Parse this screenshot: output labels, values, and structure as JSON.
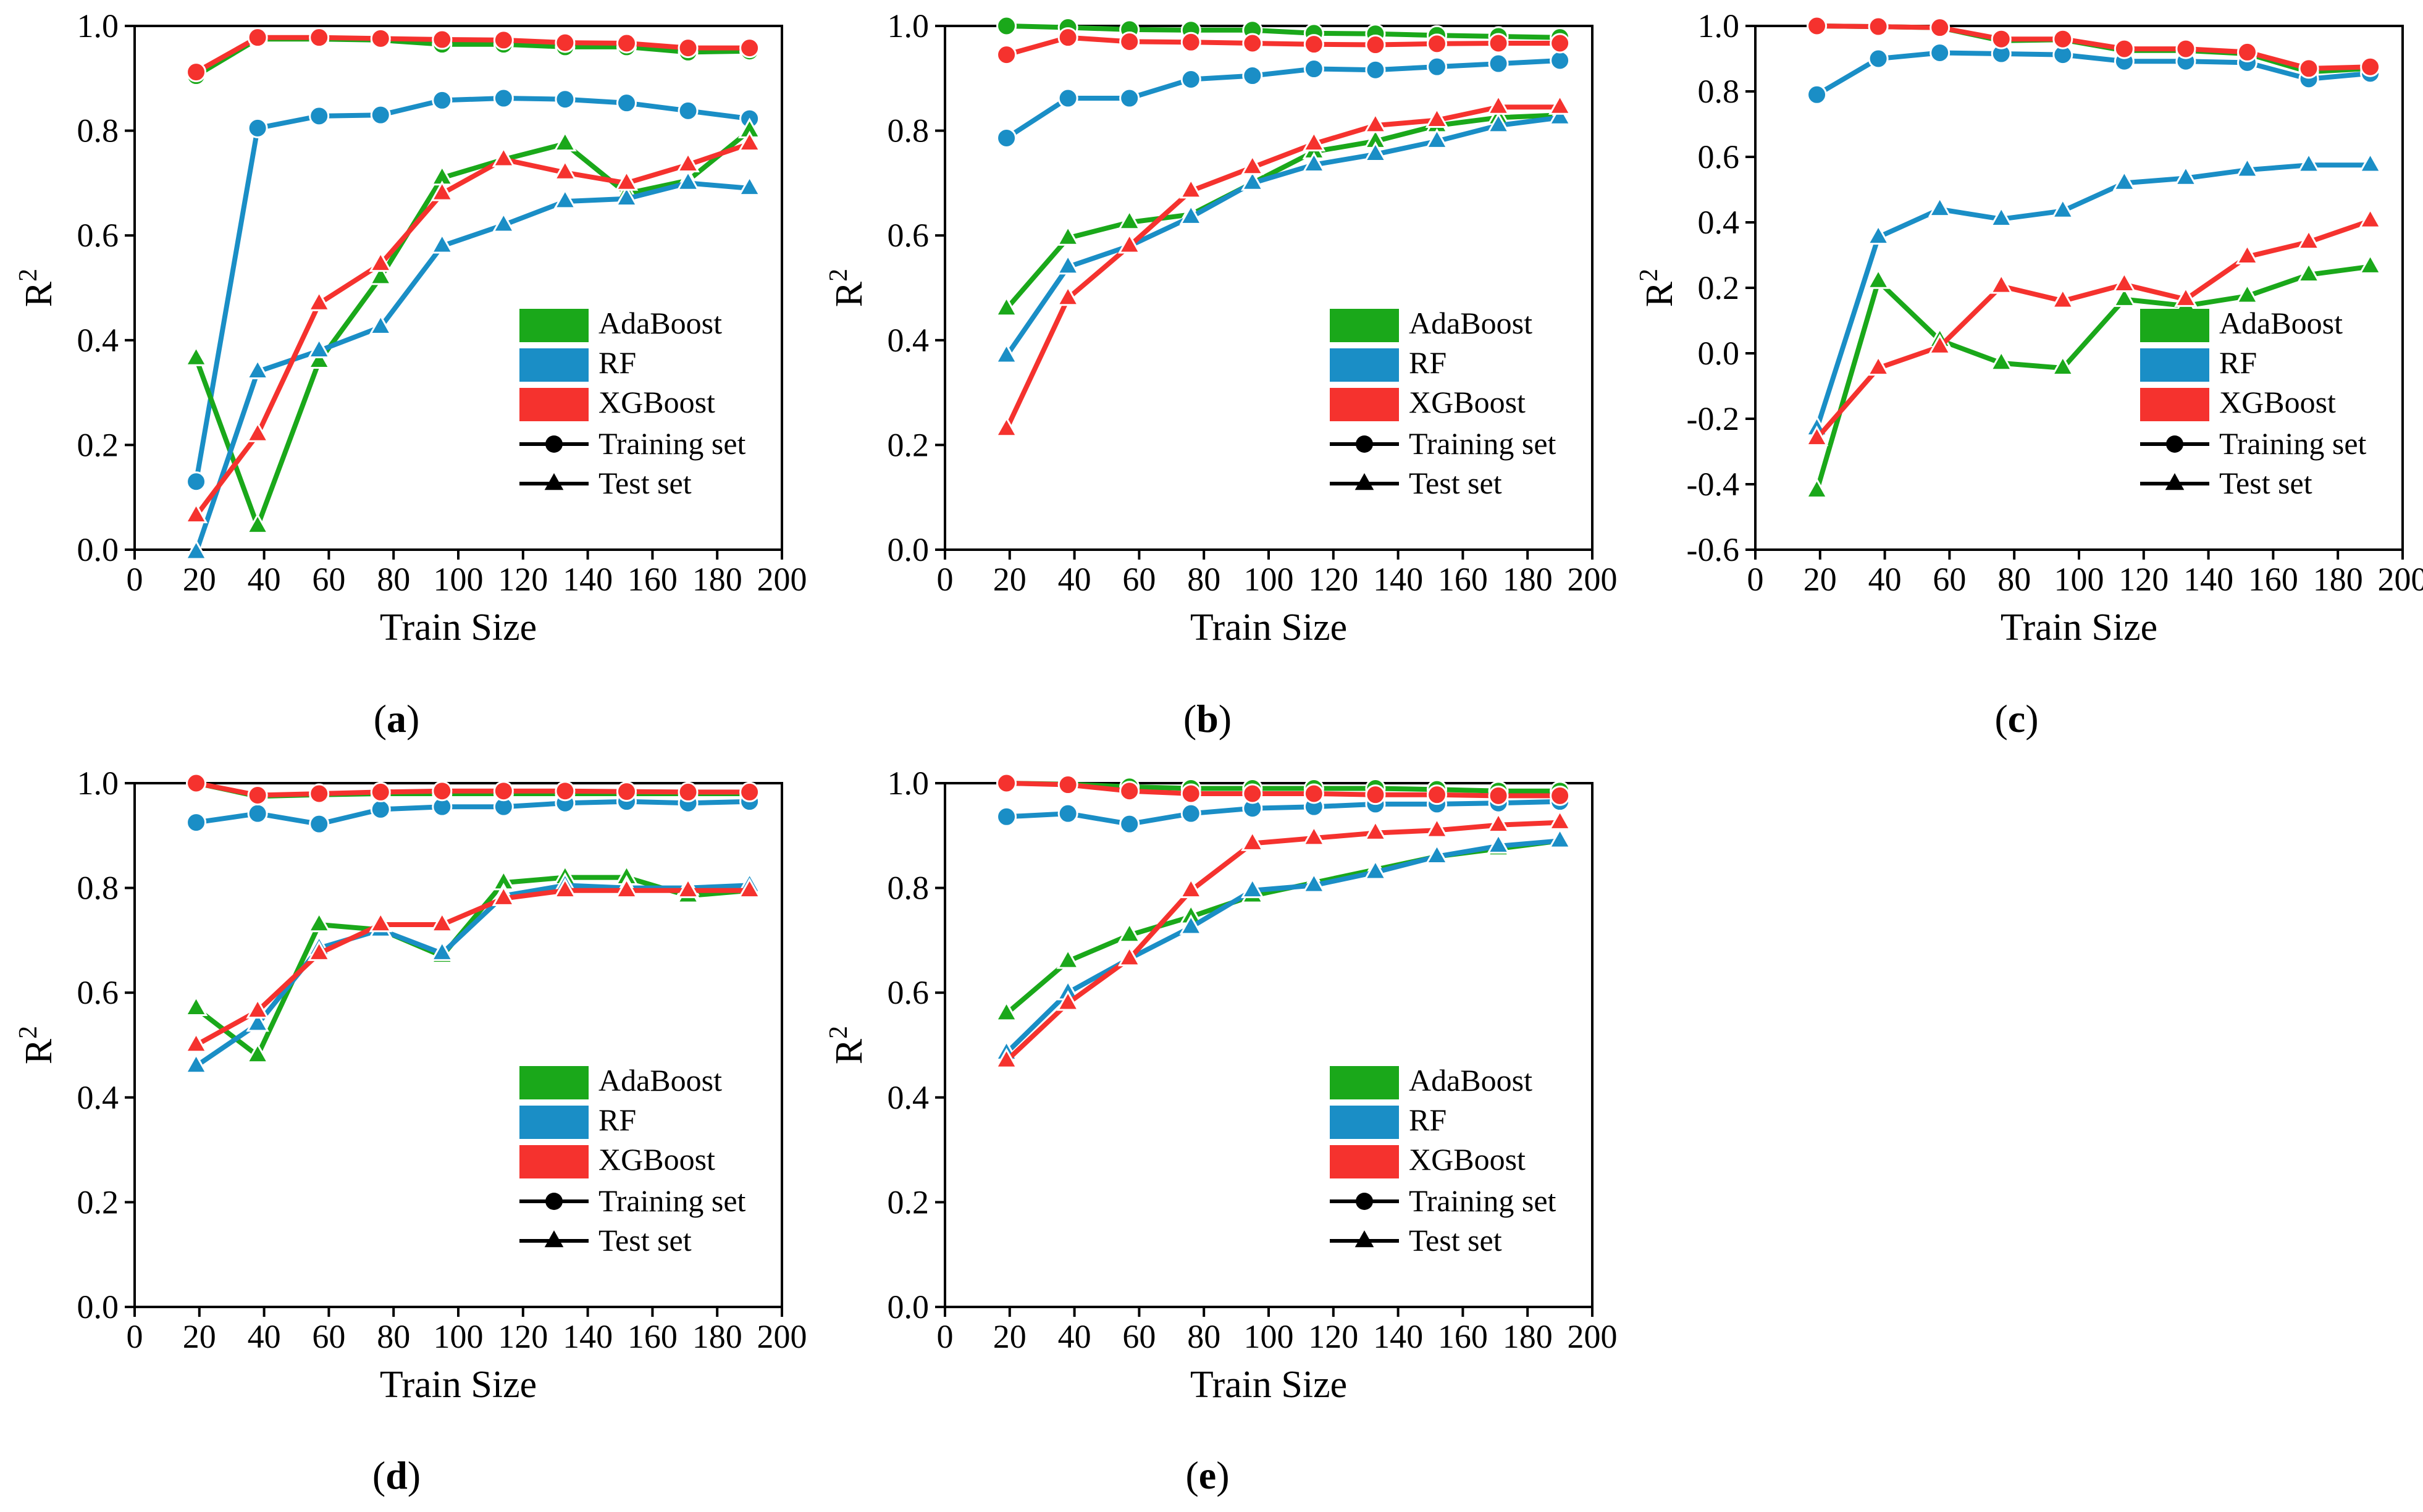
{
  "colors": {
    "AdaBoost": "#1aa81a",
    "RF": "#1a8ec6",
    "XGBoost": "#f5322e"
  },
  "chart_data": [
    {
      "panel": "(a)",
      "type": "line",
      "xlabel": "Train Size",
      "ylabel": "R2",
      "xlim": [
        0,
        200
      ],
      "ylim": [
        0.0,
        1.0
      ],
      "xticks": [
        0,
        20,
        40,
        60,
        80,
        100,
        120,
        140,
        160,
        180,
        200
      ],
      "yticks": [
        0.0,
        0.2,
        0.4,
        0.6,
        0.8,
        1.0
      ],
      "x": [
        19,
        38,
        57,
        76,
        95,
        114,
        133,
        152,
        171,
        190
      ],
      "legend": {
        "position": "lower right",
        "entries": [
          "AdaBoost",
          "RF",
          "XGBoost",
          "Training set",
          "Test set"
        ]
      },
      "series": [
        {
          "name": "AdaBoost",
          "set": "Training set",
          "values": [
            0.905,
            0.975,
            0.975,
            0.973,
            0.965,
            0.965,
            0.96,
            0.96,
            0.95,
            0.952
          ]
        },
        {
          "name": "RF",
          "set": "Training set",
          "values": [
            0.13,
            0.805,
            0.828,
            0.83,
            0.858,
            0.862,
            0.86,
            0.853,
            0.838,
            0.823
          ]
        },
        {
          "name": "XGBoost",
          "set": "Training set",
          "values": [
            0.912,
            0.978,
            0.978,
            0.976,
            0.974,
            0.973,
            0.968,
            0.967,
            0.958,
            0.958
          ]
        },
        {
          "name": "AdaBoost",
          "set": "Test set",
          "values": [
            0.365,
            0.045,
            0.36,
            0.52,
            0.71,
            0.745,
            0.775,
            0.68,
            0.705,
            0.8
          ]
        },
        {
          "name": "RF",
          "set": "Test set",
          "values": [
            -0.005,
            0.34,
            0.38,
            0.425,
            0.58,
            0.62,
            0.665,
            0.67,
            0.7,
            0.69
          ]
        },
        {
          "name": "XGBoost",
          "set": "Test set",
          "values": [
            0.065,
            0.22,
            0.47,
            0.545,
            0.68,
            0.745,
            0.72,
            0.7,
            0.735,
            0.775
          ]
        }
      ]
    },
    {
      "panel": "(b)",
      "type": "line",
      "xlabel": "Train Size",
      "ylabel": "R2",
      "xlim": [
        0,
        200
      ],
      "ylim": [
        0.0,
        1.0
      ],
      "xticks": [
        0,
        20,
        40,
        60,
        80,
        100,
        120,
        140,
        160,
        180,
        200
      ],
      "yticks": [
        0.0,
        0.2,
        0.4,
        0.6,
        0.8,
        1.0
      ],
      "x": [
        19,
        38,
        57,
        76,
        95,
        114,
        133,
        152,
        171,
        190
      ],
      "legend": {
        "position": "lower right",
        "entries": [
          "AdaBoost",
          "RF",
          "XGBoost",
          "Training set",
          "Test set"
        ]
      },
      "series": [
        {
          "name": "AdaBoost",
          "set": "Training set",
          "values": [
            1.0,
            0.997,
            0.993,
            0.992,
            0.992,
            0.986,
            0.985,
            0.982,
            0.98,
            0.978
          ]
        },
        {
          "name": "RF",
          "set": "Training set",
          "values": [
            0.786,
            0.862,
            0.862,
            0.898,
            0.905,
            0.918,
            0.916,
            0.922,
            0.928,
            0.934
          ]
        },
        {
          "name": "XGBoost",
          "set": "Training set",
          "values": [
            0.945,
            0.978,
            0.97,
            0.969,
            0.967,
            0.965,
            0.964,
            0.966,
            0.967,
            0.967
          ]
        },
        {
          "name": "AdaBoost",
          "set": "Test set",
          "values": [
            0.46,
            0.595,
            0.625,
            0.64,
            0.7,
            0.76,
            0.78,
            0.81,
            0.825,
            0.83
          ]
        },
        {
          "name": "RF",
          "set": "Test set",
          "values": [
            0.37,
            0.54,
            0.58,
            0.635,
            0.7,
            0.735,
            0.755,
            0.78,
            0.81,
            0.825
          ]
        },
        {
          "name": "XGBoost",
          "set": "Test set",
          "values": [
            0.23,
            0.48,
            0.58,
            0.685,
            0.73,
            0.775,
            0.81,
            0.82,
            0.845,
            0.845
          ]
        }
      ]
    },
    {
      "panel": "(c)",
      "type": "line",
      "xlabel": "Train Size",
      "ylabel": "R2",
      "xlim": [
        0,
        200
      ],
      "ylim": [
        -0.6,
        1.0
      ],
      "xticks": [
        0,
        20,
        40,
        60,
        80,
        100,
        120,
        140,
        160,
        180,
        200
      ],
      "yticks": [
        -0.6,
        -0.4,
        -0.2,
        0.0,
        0.2,
        0.4,
        0.6,
        0.8,
        1.0
      ],
      "x": [
        19,
        38,
        57,
        76,
        95,
        114,
        133,
        152,
        171,
        190
      ],
      "legend": {
        "position": "lower right",
        "entries": [
          "AdaBoost",
          "RF",
          "XGBoost",
          "Training set",
          "Test set"
        ]
      },
      "series": [
        {
          "name": "AdaBoost",
          "set": "Training set",
          "values": [
            1.0,
            0.998,
            0.995,
            0.955,
            0.958,
            0.925,
            0.925,
            0.915,
            0.86,
            0.87
          ]
        },
        {
          "name": "RF",
          "set": "Training set",
          "values": [
            0.79,
            0.9,
            0.918,
            0.915,
            0.912,
            0.892,
            0.892,
            0.888,
            0.838,
            0.855
          ]
        },
        {
          "name": "XGBoost",
          "set": "Training set",
          "values": [
            1.0,
            0.998,
            0.995,
            0.96,
            0.96,
            0.93,
            0.93,
            0.92,
            0.87,
            0.875
          ]
        },
        {
          "name": "AdaBoost",
          "set": "Test set",
          "values": [
            -0.42,
            0.22,
            0.04,
            -0.03,
            -0.045,
            0.165,
            0.145,
            0.175,
            0.24,
            0.265
          ]
        },
        {
          "name": "RF",
          "set": "Test set",
          "values": [
            -0.23,
            0.355,
            0.44,
            0.41,
            0.435,
            0.52,
            0.535,
            0.56,
            0.575,
            0.575
          ]
        },
        {
          "name": "XGBoost",
          "set": "Test set",
          "values": [
            -0.26,
            -0.045,
            0.02,
            0.205,
            0.16,
            0.21,
            0.165,
            0.295,
            0.34,
            0.405
          ]
        }
      ]
    },
    {
      "panel": "(d)",
      "type": "line",
      "xlabel": "Train Size",
      "ylabel": "R2",
      "xlim": [
        0,
        200
      ],
      "ylim": [
        0.0,
        1.0
      ],
      "xticks": [
        0,
        20,
        40,
        60,
        80,
        100,
        120,
        140,
        160,
        180,
        200
      ],
      "yticks": [
        0.0,
        0.2,
        0.4,
        0.6,
        0.8,
        1.0
      ],
      "x": [
        19,
        38,
        57,
        76,
        95,
        114,
        133,
        152,
        171,
        190
      ],
      "legend": {
        "position": "lower right",
        "entries": [
          "AdaBoost",
          "RF",
          "XGBoost",
          "Training set",
          "Test set"
        ]
      },
      "series": [
        {
          "name": "AdaBoost",
          "set": "Training set",
          "values": [
            1.0,
            0.975,
            0.978,
            0.98,
            0.98,
            0.98,
            0.98,
            0.98,
            0.98,
            0.98
          ]
        },
        {
          "name": "RF",
          "set": "Training set",
          "values": [
            0.925,
            0.942,
            0.922,
            0.95,
            0.955,
            0.955,
            0.962,
            0.965,
            0.962,
            0.965
          ]
        },
        {
          "name": "XGBoost",
          "set": "Training set",
          "values": [
            1.0,
            0.977,
            0.98,
            0.983,
            0.985,
            0.985,
            0.985,
            0.984,
            0.983,
            0.983
          ]
        },
        {
          "name": "AdaBoost",
          "set": "Test set",
          "values": [
            0.57,
            0.48,
            0.73,
            0.72,
            0.67,
            0.81,
            0.82,
            0.82,
            0.785,
            0.795
          ]
        },
        {
          "name": "RF",
          "set": "Test set",
          "values": [
            0.46,
            0.54,
            0.685,
            0.72,
            0.675,
            0.785,
            0.805,
            0.8,
            0.8,
            0.805
          ]
        },
        {
          "name": "XGBoost",
          "set": "Test set",
          "values": [
            0.5,
            0.565,
            0.675,
            0.73,
            0.73,
            0.78,
            0.795,
            0.795,
            0.795,
            0.795
          ]
        }
      ]
    },
    {
      "panel": "(e)",
      "type": "line",
      "xlabel": "Train Size",
      "ylabel": "R2",
      "xlim": [
        0,
        200
      ],
      "ylim": [
        0.0,
        1.0
      ],
      "xticks": [
        0,
        20,
        40,
        60,
        80,
        100,
        120,
        140,
        160,
        180,
        200
      ],
      "yticks": [
        0.0,
        0.2,
        0.4,
        0.6,
        0.8,
        1.0
      ],
      "x": [
        19,
        38,
        57,
        76,
        95,
        114,
        133,
        152,
        171,
        190
      ],
      "legend": {
        "position": "lower right",
        "entries": [
          "AdaBoost",
          "RF",
          "XGBoost",
          "Training set",
          "Test set"
        ]
      },
      "series": [
        {
          "name": "AdaBoost",
          "set": "Training set",
          "values": [
            1.0,
            0.998,
            0.993,
            0.99,
            0.99,
            0.99,
            0.99,
            0.988,
            0.985,
            0.985
          ]
        },
        {
          "name": "RF",
          "set": "Training set",
          "values": [
            0.936,
            0.942,
            0.922,
            0.942,
            0.952,
            0.955,
            0.96,
            0.96,
            0.962,
            0.965
          ]
        },
        {
          "name": "XGBoost",
          "set": "Training set",
          "values": [
            1.0,
            0.997,
            0.985,
            0.98,
            0.98,
            0.98,
            0.978,
            0.978,
            0.976,
            0.976
          ]
        },
        {
          "name": "AdaBoost",
          "set": "Test set",
          "values": [
            0.56,
            0.66,
            0.71,
            0.745,
            0.785,
            0.81,
            0.835,
            0.86,
            0.875,
            0.89
          ]
        },
        {
          "name": "RF",
          "set": "Test set",
          "values": [
            0.485,
            0.6,
            0.665,
            0.725,
            0.795,
            0.805,
            0.83,
            0.86,
            0.88,
            0.89
          ]
        },
        {
          "name": "XGBoost",
          "set": "Test set",
          "values": [
            0.47,
            0.58,
            0.665,
            0.795,
            0.885,
            0.895,
            0.905,
            0.91,
            0.92,
            0.925
          ]
        }
      ]
    }
  ]
}
